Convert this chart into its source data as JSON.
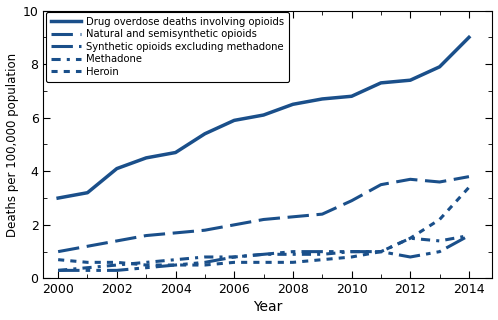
{
  "years": [
    2000,
    2001,
    2002,
    2003,
    2004,
    2005,
    2006,
    2007,
    2008,
    2009,
    2010,
    2011,
    2012,
    2013,
    2014
  ],
  "drug_overdose": [
    3.0,
    3.2,
    4.1,
    4.5,
    4.7,
    5.4,
    5.9,
    6.1,
    6.5,
    6.7,
    6.8,
    7.3,
    7.4,
    7.9,
    9.0
  ],
  "natural_semisynthetic": [
    1.0,
    1.2,
    1.4,
    1.6,
    1.7,
    1.8,
    2.0,
    2.2,
    2.3,
    2.4,
    2.9,
    3.5,
    3.7,
    3.6,
    3.8
  ],
  "synthetic_excl_methadone": [
    0.3,
    0.3,
    0.3,
    0.4,
    0.5,
    0.6,
    0.8,
    0.9,
    1.0,
    1.0,
    1.0,
    1.0,
    0.8,
    1.0,
    1.6
  ],
  "methadone": [
    0.3,
    0.4,
    0.5,
    0.6,
    0.7,
    0.8,
    0.8,
    0.9,
    0.9,
    0.9,
    1.0,
    1.0,
    1.5,
    1.4,
    1.6
  ],
  "heroin": [
    0.7,
    0.6,
    0.6,
    0.5,
    0.5,
    0.5,
    0.6,
    0.6,
    0.6,
    0.7,
    0.8,
    1.0,
    1.5,
    2.2,
    3.4
  ],
  "color": "#1a4f8a",
  "ylabel": "Deaths per 100,000 population",
  "xlabel": "Year",
  "ylim": [
    0,
    10
  ],
  "xlim": [
    1999.5,
    2014.8
  ],
  "yticks": [
    0,
    2,
    4,
    6,
    8,
    10
  ],
  "xticks": [
    2000,
    2002,
    2004,
    2006,
    2008,
    2010,
    2012,
    2014
  ],
  "legend_labels": [
    "Drug overdose deaths involving opioids",
    "Natural and semisynthetic opioids",
    "Synthetic opioids excluding methadone",
    "Methadone",
    "Heroin"
  ],
  "background_color": "#ffffff",
  "linewidth": 2.2
}
